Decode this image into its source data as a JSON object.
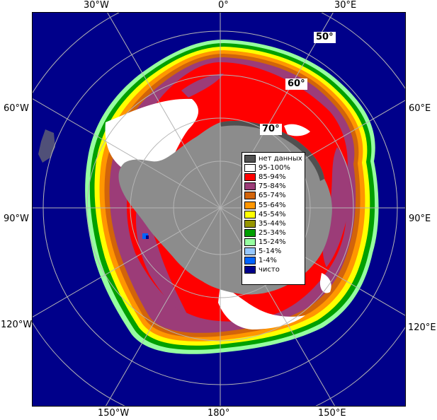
{
  "map": {
    "colors": {
      "ocean": "#00008a",
      "land": "#8c8c8c",
      "graticule": "#b4b4b4"
    },
    "longitude_labels": {
      "top_30w": "30°W",
      "top_0": "0°",
      "top_30e": "30°E",
      "left_60w": "60°W",
      "right_60e": "60°E",
      "left_90w": "90°W",
      "right_90e": "90°E",
      "left_120w": "120°W",
      "right_120e": "120°E",
      "bottom_150w": "150°W",
      "bottom_180": "180°",
      "bottom_150e": "150°E"
    },
    "latitude_labels": {
      "lat_50": "50°",
      "lat_60": "60°",
      "lat_70": "70°"
    }
  },
  "legend": {
    "items": [
      {
        "label": "нет данных",
        "color": "#505050"
      },
      {
        "label": "95-100%",
        "color": "#ffffff"
      },
      {
        "label": "85-94%",
        "color": "#ff0000"
      },
      {
        "label": "75-84%",
        "color": "#9c3c78"
      },
      {
        "label": "65-74%",
        "color": "#d2640a"
      },
      {
        "label": "55-64%",
        "color": "#ff9600"
      },
      {
        "label": "45-54%",
        "color": "#ffff00"
      },
      {
        "label": "35-44%",
        "color": "#969600"
      },
      {
        "label": "25-34%",
        "color": "#00a000"
      },
      {
        "label": "15-24%",
        "color": "#96ffa0"
      },
      {
        "label": "5-14%",
        "color": "#96c8ff"
      },
      {
        "label": "1-4%",
        "color": "#0064ff"
      },
      {
        "label": "чисто",
        "color": "#00008a"
      }
    ]
  }
}
